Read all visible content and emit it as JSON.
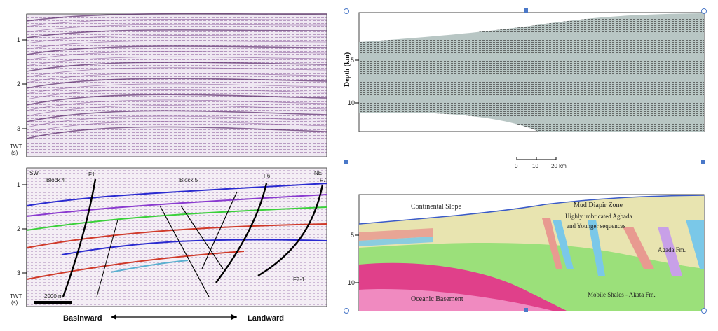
{
  "panel_a": {
    "twt_label": "TWT\n(s)",
    "ticks": [
      "1",
      "2",
      "3"
    ]
  },
  "panel_b": {
    "left_end": "SW",
    "right_end": "NE",
    "block_left": "Block 4",
    "block_right": "Block 5",
    "fault_labels": [
      "F1",
      "F6",
      "F7",
      "F7-1"
    ],
    "scale_bar": "2000 m",
    "twt_label": "TWT\n(s)",
    "ticks": [
      "1",
      "2",
      "3"
    ],
    "arrow_left": "Basinward",
    "arrow_right": "Landward"
  },
  "panel_c": {
    "ylabel": "Depth (km)",
    "ticks": [
      "5",
      "10"
    ],
    "scale_ticks": [
      "0",
      "10",
      "20 km"
    ]
  },
  "panel_d": {
    "ticks": [
      "5",
      "10"
    ],
    "labels": {
      "slope": "Continental Slope",
      "diapir": "Mud Diapir Zone",
      "agbada1": "Highly imbricated Agbada",
      "agbada2": "and Younger sequences",
      "agada": "Agada Fm.",
      "basement": "Oceanic Basement",
      "akata": "Mobile Shales - Akata Fm."
    }
  },
  "colors": {
    "seismic_purple": "#6b3b7a",
    "horizon_blue": "#2a2ad0",
    "horizon_purple": "#8a3ad0",
    "horizon_green": "#3ad03a",
    "horizon_red": "#d03a2a",
    "basement_pink": "#e0408a",
    "shale_green": "#9be07a",
    "agbada_tan": "#e8e4b0"
  }
}
